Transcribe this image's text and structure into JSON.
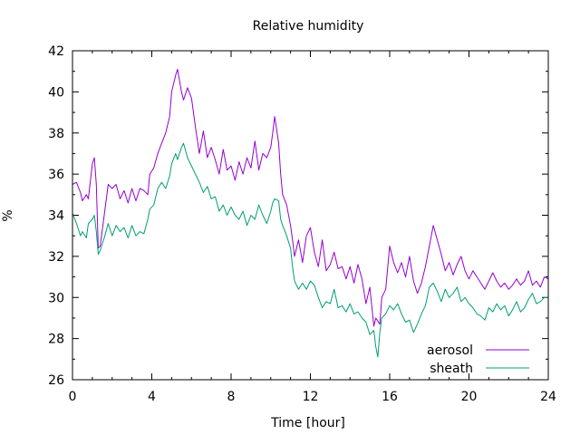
{
  "chart_data": {
    "type": "line",
    "title": "Relative humidity",
    "xlabel": "Time [hour]",
    "ylabel": "%",
    "xlim": [
      0,
      24
    ],
    "ylim": [
      26,
      42
    ],
    "xticks": [
      0,
      4,
      8,
      12,
      16,
      20,
      24
    ],
    "yticks": [
      26,
      28,
      30,
      32,
      34,
      36,
      38,
      40,
      42
    ],
    "grid": false,
    "legend_position": "bottom-right",
    "series": [
      {
        "name": "aerosol",
        "color": "#9400d3",
        "points": [
          [
            0.0,
            35.5
          ],
          [
            0.2,
            35.6
          ],
          [
            0.4,
            35.1
          ],
          [
            0.5,
            34.7
          ],
          [
            0.7,
            35.0
          ],
          [
            0.8,
            34.8
          ],
          [
            1.0,
            36.5
          ],
          [
            1.1,
            36.8
          ],
          [
            1.2,
            35.5
          ],
          [
            1.3,
            32.4
          ],
          [
            1.4,
            32.5
          ],
          [
            1.6,
            34.0
          ],
          [
            1.8,
            35.5
          ],
          [
            2.0,
            35.3
          ],
          [
            2.2,
            35.5
          ],
          [
            2.4,
            34.8
          ],
          [
            2.6,
            35.2
          ],
          [
            2.8,
            34.6
          ],
          [
            3.0,
            35.3
          ],
          [
            3.2,
            34.7
          ],
          [
            3.4,
            35.3
          ],
          [
            3.6,
            35.2
          ],
          [
            3.8,
            35.0
          ],
          [
            3.9,
            36.0
          ],
          [
            4.1,
            36.3
          ],
          [
            4.3,
            37.0
          ],
          [
            4.5,
            37.5
          ],
          [
            4.7,
            38.0
          ],
          [
            4.9,
            38.8
          ],
          [
            5.0,
            40.0
          ],
          [
            5.2,
            40.8
          ],
          [
            5.3,
            41.1
          ],
          [
            5.5,
            40.0
          ],
          [
            5.6,
            39.6
          ],
          [
            5.8,
            40.2
          ],
          [
            6.0,
            39.7
          ],
          [
            6.2,
            38.3
          ],
          [
            6.4,
            37.0
          ],
          [
            6.6,
            38.1
          ],
          [
            6.8,
            36.8
          ],
          [
            7.0,
            37.3
          ],
          [
            7.2,
            36.7
          ],
          [
            7.4,
            36.0
          ],
          [
            7.6,
            37.2
          ],
          [
            7.8,
            36.2
          ],
          [
            8.0,
            36.4
          ],
          [
            8.2,
            35.7
          ],
          [
            8.4,
            36.6
          ],
          [
            8.6,
            36.0
          ],
          [
            8.8,
            36.8
          ],
          [
            9.0,
            36.3
          ],
          [
            9.2,
            37.6
          ],
          [
            9.4,
            36.2
          ],
          [
            9.6,
            37.0
          ],
          [
            9.8,
            36.8
          ],
          [
            10.0,
            37.3
          ],
          [
            10.1,
            38.0
          ],
          [
            10.2,
            38.8
          ],
          [
            10.4,
            37.5
          ],
          [
            10.5,
            36.0
          ],
          [
            10.6,
            35.0
          ],
          [
            10.8,
            34.5
          ],
          [
            11.0,
            33.5
          ],
          [
            11.1,
            32.8
          ],
          [
            11.2,
            32.0
          ],
          [
            11.4,
            32.8
          ],
          [
            11.6,
            31.7
          ],
          [
            11.8,
            33.0
          ],
          [
            12.0,
            33.4
          ],
          [
            12.2,
            32.2
          ],
          [
            12.4,
            31.5
          ],
          [
            12.6,
            32.8
          ],
          [
            12.8,
            31.3
          ],
          [
            13.0,
            31.6
          ],
          [
            13.2,
            32.2
          ],
          [
            13.4,
            31.4
          ],
          [
            13.6,
            31.5
          ],
          [
            13.8,
            30.9
          ],
          [
            14.0,
            31.5
          ],
          [
            14.2,
            30.7
          ],
          [
            14.4,
            31.6
          ],
          [
            14.6,
            30.9
          ],
          [
            14.8,
            29.7
          ],
          [
            15.0,
            30.5
          ],
          [
            15.2,
            28.6
          ],
          [
            15.3,
            29.0
          ],
          [
            15.5,
            28.7
          ],
          [
            15.6,
            30.0
          ],
          [
            15.8,
            30.4
          ],
          [
            16.0,
            32.5
          ],
          [
            16.2,
            31.7
          ],
          [
            16.4,
            31.2
          ],
          [
            16.6,
            31.7
          ],
          [
            16.8,
            31.0
          ],
          [
            17.0,
            32.0
          ],
          [
            17.2,
            30.8
          ],
          [
            17.4,
            30.2
          ],
          [
            17.6,
            30.7
          ],
          [
            17.8,
            31.5
          ],
          [
            18.0,
            32.5
          ],
          [
            18.2,
            33.5
          ],
          [
            18.4,
            32.8
          ],
          [
            18.6,
            32.1
          ],
          [
            18.8,
            31.3
          ],
          [
            19.0,
            31.7
          ],
          [
            19.2,
            31.1
          ],
          [
            19.4,
            31.6
          ],
          [
            19.6,
            32.0
          ],
          [
            19.8,
            31.3
          ],
          [
            20.0,
            30.9
          ],
          [
            20.2,
            31.3
          ],
          [
            20.4,
            31.0
          ],
          [
            20.6,
            30.7
          ],
          [
            20.8,
            30.4
          ],
          [
            21.0,
            30.8
          ],
          [
            21.2,
            31.2
          ],
          [
            21.4,
            30.8
          ],
          [
            21.6,
            30.5
          ],
          [
            21.8,
            30.7
          ],
          [
            22.0,
            30.4
          ],
          [
            22.2,
            30.6
          ],
          [
            22.4,
            30.9
          ],
          [
            22.6,
            30.6
          ],
          [
            22.8,
            30.8
          ],
          [
            23.0,
            31.3
          ],
          [
            23.2,
            30.6
          ],
          [
            23.4,
            30.8
          ],
          [
            23.6,
            30.5
          ],
          [
            23.8,
            31.0
          ],
          [
            24.0,
            30.9
          ]
        ]
      },
      {
        "name": "sheath",
        "color": "#009e73",
        "points": [
          [
            0.0,
            34.1
          ],
          [
            0.2,
            33.6
          ],
          [
            0.4,
            33.0
          ],
          [
            0.5,
            33.2
          ],
          [
            0.7,
            32.9
          ],
          [
            0.8,
            33.6
          ],
          [
            1.0,
            33.8
          ],
          [
            1.1,
            34.0
          ],
          [
            1.2,
            33.2
          ],
          [
            1.3,
            32.1
          ],
          [
            1.4,
            32.3
          ],
          [
            1.6,
            32.9
          ],
          [
            1.8,
            33.6
          ],
          [
            2.0,
            33.0
          ],
          [
            2.2,
            33.5
          ],
          [
            2.4,
            33.2
          ],
          [
            2.6,
            33.4
          ],
          [
            2.8,
            32.9
          ],
          [
            3.0,
            33.5
          ],
          [
            3.2,
            33.0
          ],
          [
            3.4,
            33.2
          ],
          [
            3.6,
            33.1
          ],
          [
            3.8,
            33.8
          ],
          [
            3.9,
            34.3
          ],
          [
            4.1,
            34.5
          ],
          [
            4.3,
            35.3
          ],
          [
            4.5,
            35.6
          ],
          [
            4.7,
            35.3
          ],
          [
            4.9,
            35.9
          ],
          [
            5.0,
            36.5
          ],
          [
            5.2,
            37.0
          ],
          [
            5.3,
            36.7
          ],
          [
            5.5,
            37.3
          ],
          [
            5.6,
            37.5
          ],
          [
            5.8,
            36.8
          ],
          [
            6.0,
            36.4
          ],
          [
            6.2,
            36.0
          ],
          [
            6.4,
            35.6
          ],
          [
            6.6,
            35.1
          ],
          [
            6.8,
            35.4
          ],
          [
            7.0,
            34.8
          ],
          [
            7.2,
            34.9
          ],
          [
            7.4,
            34.2
          ],
          [
            7.6,
            34.5
          ],
          [
            7.8,
            34.0
          ],
          [
            8.0,
            34.4
          ],
          [
            8.2,
            34.0
          ],
          [
            8.4,
            33.8
          ],
          [
            8.6,
            34.2
          ],
          [
            8.8,
            33.5
          ],
          [
            9.0,
            34.0
          ],
          [
            9.2,
            33.8
          ],
          [
            9.4,
            34.5
          ],
          [
            9.6,
            34.0
          ],
          [
            9.8,
            33.6
          ],
          [
            10.0,
            34.2
          ],
          [
            10.1,
            34.6
          ],
          [
            10.2,
            34.8
          ],
          [
            10.4,
            34.7
          ],
          [
            10.5,
            33.8
          ],
          [
            10.6,
            33.5
          ],
          [
            10.8,
            33.0
          ],
          [
            11.0,
            32.4
          ],
          [
            11.1,
            31.5
          ],
          [
            11.2,
            30.8
          ],
          [
            11.4,
            30.4
          ],
          [
            11.6,
            30.7
          ],
          [
            11.8,
            30.4
          ],
          [
            12.0,
            30.8
          ],
          [
            12.2,
            30.6
          ],
          [
            12.4,
            30.0
          ],
          [
            12.6,
            29.5
          ],
          [
            12.8,
            29.8
          ],
          [
            13.0,
            29.7
          ],
          [
            13.2,
            30.4
          ],
          [
            13.4,
            29.5
          ],
          [
            13.6,
            29.6
          ],
          [
            13.8,
            29.3
          ],
          [
            14.0,
            29.7
          ],
          [
            14.2,
            29.2
          ],
          [
            14.4,
            29.3
          ],
          [
            14.6,
            29.0
          ],
          [
            14.8,
            28.8
          ],
          [
            15.0,
            28.2
          ],
          [
            15.2,
            28.4
          ],
          [
            15.3,
            27.6
          ],
          [
            15.4,
            27.1
          ],
          [
            15.5,
            28.3
          ],
          [
            15.6,
            29.0
          ],
          [
            15.8,
            29.2
          ],
          [
            16.0,
            29.6
          ],
          [
            16.2,
            29.4
          ],
          [
            16.4,
            29.7
          ],
          [
            16.6,
            29.2
          ],
          [
            16.8,
            28.8
          ],
          [
            17.0,
            28.9
          ],
          [
            17.2,
            28.3
          ],
          [
            17.4,
            28.7
          ],
          [
            17.6,
            29.2
          ],
          [
            17.8,
            29.6
          ],
          [
            18.0,
            30.5
          ],
          [
            18.2,
            30.7
          ],
          [
            18.4,
            30.3
          ],
          [
            18.6,
            29.8
          ],
          [
            18.8,
            30.4
          ],
          [
            19.0,
            30.0
          ],
          [
            19.2,
            30.2
          ],
          [
            19.4,
            30.5
          ],
          [
            19.6,
            29.8
          ],
          [
            19.8,
            30.0
          ],
          [
            20.0,
            29.7
          ],
          [
            20.2,
            29.5
          ],
          [
            20.4,
            29.2
          ],
          [
            20.6,
            29.1
          ],
          [
            20.8,
            28.9
          ],
          [
            21.0,
            29.5
          ],
          [
            21.2,
            29.3
          ],
          [
            21.4,
            29.7
          ],
          [
            21.6,
            29.4
          ],
          [
            21.8,
            29.6
          ],
          [
            22.0,
            29.1
          ],
          [
            22.2,
            29.4
          ],
          [
            22.4,
            29.8
          ],
          [
            22.6,
            29.3
          ],
          [
            22.8,
            29.5
          ],
          [
            23.0,
            29.9
          ],
          [
            23.2,
            30.2
          ],
          [
            23.4,
            29.7
          ],
          [
            23.6,
            29.8
          ],
          [
            23.8,
            30.0
          ],
          [
            24.0,
            30.0
          ]
        ]
      }
    ]
  }
}
